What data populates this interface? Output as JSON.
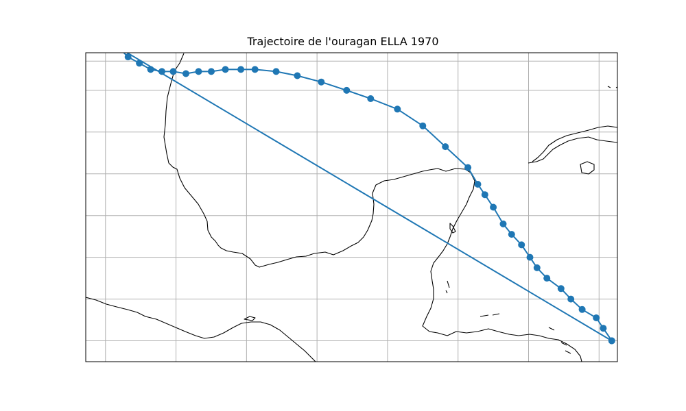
{
  "title": "Trajectoire de l'ouragan ELLA 1970",
  "colors": {
    "track": "#1f77b4",
    "coast": "#000000",
    "grid": "#b0b0b0",
    "frame": "#000000"
  },
  "map": {
    "lon_range": [
      -100.4,
      -62.7
    ],
    "lat_range": [
      14.0,
      28.8
    ],
    "grid_lons": [
      -99,
      -94,
      -89,
      -84,
      -79,
      -74,
      -69,
      -64
    ],
    "grid_lats": [
      15,
      17,
      19,
      21,
      23,
      25,
      27,
      28.4
    ]
  },
  "track": {
    "marker": "circle",
    "points": [
      {
        "lon": -63.1,
        "lat": 15.0
      },
      {
        "lon": -63.7,
        "lat": 15.6
      },
      {
        "lon": -64.2,
        "lat": 16.1
      },
      {
        "lon": -65.2,
        "lat": 16.5
      },
      {
        "lon": -66.0,
        "lat": 17.0
      },
      {
        "lon": -66.7,
        "lat": 17.5
      },
      {
        "lon": -67.7,
        "lat": 18.0
      },
      {
        "lon": -68.4,
        "lat": 18.5
      },
      {
        "lon": -68.9,
        "lat": 19.0
      },
      {
        "lon": -69.5,
        "lat": 19.6
      },
      {
        "lon": -70.2,
        "lat": 20.1
      },
      {
        "lon": -70.8,
        "lat": 20.6
      },
      {
        "lon": -71.5,
        "lat": 21.4
      },
      {
        "lon": -72.1,
        "lat": 22.0
      },
      {
        "lon": -72.6,
        "lat": 22.5
      },
      {
        "lon": -73.3,
        "lat": 23.3
      },
      {
        "lon": -74.9,
        "lat": 24.3
      },
      {
        "lon": -76.5,
        "lat": 25.3
      },
      {
        "lon": -78.3,
        "lat": 26.1
      },
      {
        "lon": -80.2,
        "lat": 26.6
      },
      {
        "lon": -81.9,
        "lat": 27.0
      },
      {
        "lon": -83.7,
        "lat": 27.4
      },
      {
        "lon": -85.4,
        "lat": 27.7
      },
      {
        "lon": -86.9,
        "lat": 27.9
      },
      {
        "lon": -88.4,
        "lat": 28.0
      },
      {
        "lon": -89.4,
        "lat": 28.0
      },
      {
        "lon": -90.5,
        "lat": 28.0
      },
      {
        "lon": -91.5,
        "lat": 27.9
      },
      {
        "lon": -92.4,
        "lat": 27.9
      },
      {
        "lon": -93.3,
        "lat": 27.8
      },
      {
        "lon": -94.2,
        "lat": 27.9
      },
      {
        "lon": -95.0,
        "lat": 27.9
      },
      {
        "lon": -95.8,
        "lat": 28.0
      },
      {
        "lon": -96.6,
        "lat": 28.3
      },
      {
        "lon": -97.4,
        "lat": 28.6
      },
      {
        "lon": -98.0,
        "lat": 29.0
      },
      {
        "lon": -98.7,
        "lat": 29.3
      },
      {
        "lon": -63.1,
        "lat": 15.0
      }
    ]
  }
}
